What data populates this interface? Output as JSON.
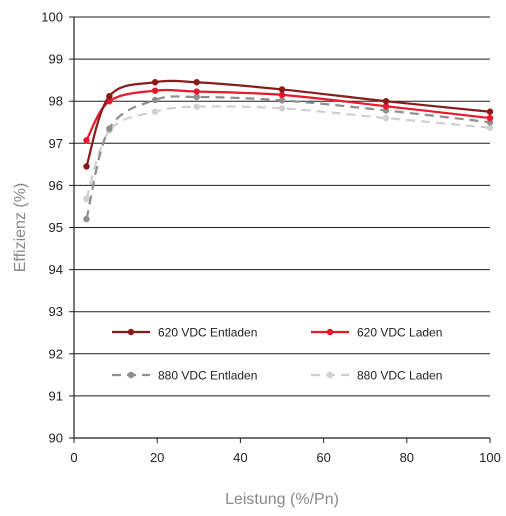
{
  "chart_data": {
    "type": "line",
    "title": "",
    "xlabel": "Leistung (%/Pn)",
    "ylabel": "Effizienz (%)",
    "xlim": [
      0,
      100
    ],
    "ylim": [
      90,
      100
    ],
    "xticks": [
      0,
      20,
      40,
      60,
      80,
      100
    ],
    "yticks": [
      90,
      91,
      92,
      93,
      94,
      95,
      96,
      97,
      98,
      99,
      100
    ],
    "grid": "horizontal",
    "legend_position": "lower-center",
    "series": [
      {
        "name": "620 VDC Entladen",
        "color": "#8b1a1a",
        "style": "solid",
        "x": [
          3,
          8.5,
          19.5,
          29.5,
          50,
          75,
          100
        ],
        "y": [
          96.45,
          98.12,
          98.45,
          98.45,
          98.28,
          98.0,
          97.75
        ]
      },
      {
        "name": "620 VDC Laden",
        "color": "#e8192c",
        "style": "solid",
        "x": [
          3,
          8.5,
          19.5,
          29.5,
          50,
          75,
          100
        ],
        "y": [
          97.07,
          98.0,
          98.25,
          98.23,
          98.15,
          97.88,
          97.6
        ]
      },
      {
        "name": "880 VDC Entladen",
        "color": "#8f8f8f",
        "style": "dashed",
        "x": [
          3,
          8.5,
          19.5,
          29.5,
          50,
          75,
          100
        ],
        "y": [
          95.2,
          97.35,
          98.03,
          98.1,
          98.02,
          97.78,
          97.5
        ]
      },
      {
        "name": "880 VDC Laden",
        "color": "#d0d0d0",
        "style": "dashed",
        "x": [
          3,
          8.5,
          19.5,
          29.5,
          50,
          75,
          100
        ],
        "y": [
          95.68,
          97.3,
          97.75,
          97.87,
          97.83,
          97.6,
          97.37
        ]
      }
    ]
  }
}
